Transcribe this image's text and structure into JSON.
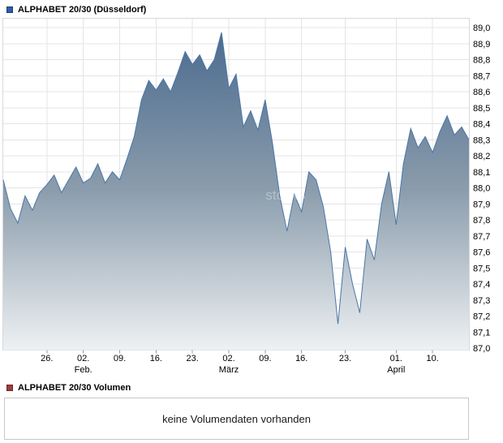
{
  "header": {
    "title": "ALPHABET 20/30 (Düsseldorf)",
    "legend_color": "#2d5da9"
  },
  "watermark": "stock3",
  "chart_data": {
    "type": "area",
    "title": "ALPHABET 20/30 (Düsseldorf)",
    "ylabel": "",
    "xlabel": "",
    "ylim": [
      87.0,
      89.0
    ],
    "y_tick_step": 0.1,
    "grid": true,
    "legend_position": "top-left",
    "line_color": "#4a76a6",
    "area_top_color": "#4a6a8e",
    "area_mid_color": "#8a9cac",
    "area_bottom_color": "#eef1f3",
    "grid_color": "#e4e4e4",
    "border_color": "#d8d8d8",
    "y_tick_labels": [
      "89,0",
      "88,9",
      "88,8",
      "88,7",
      "88,6",
      "88,5",
      "88,4",
      "88,3",
      "88,2",
      "88,1",
      "88,0",
      "87,9",
      "87,8",
      "87,7",
      "87,6",
      "87,5",
      "87,4",
      "87,3",
      "87,2",
      "87,1",
      "87,0"
    ],
    "values": [
      88.05,
      87.87,
      87.78,
      87.95,
      87.86,
      87.97,
      88.02,
      88.08,
      87.97,
      88.05,
      88.13,
      88.03,
      88.06,
      88.15,
      88.03,
      88.1,
      88.05,
      88.18,
      88.32,
      88.55,
      88.67,
      88.61,
      88.68,
      88.6,
      88.72,
      88.85,
      88.77,
      88.83,
      88.73,
      88.8,
      88.97,
      88.62,
      88.71,
      88.38,
      88.48,
      88.36,
      88.55,
      88.28,
      87.95,
      87.73,
      87.96,
      87.85,
      88.1,
      88.05,
      87.88,
      87.6,
      87.15,
      87.63,
      87.4,
      87.22,
      87.68,
      87.55,
      87.9,
      88.1,
      87.77,
      88.15,
      88.37,
      88.25,
      88.32,
      88.22,
      88.35,
      88.45,
      88.33,
      88.38,
      88.3
    ],
    "x_ticks": [
      {
        "index": 6,
        "label": "26.",
        "sub": ""
      },
      {
        "index": 11,
        "label": "02.",
        "sub": "Feb."
      },
      {
        "index": 16,
        "label": "09.",
        "sub": ""
      },
      {
        "index": 21,
        "label": "16.",
        "sub": ""
      },
      {
        "index": 26,
        "label": "23.",
        "sub": ""
      },
      {
        "index": 31,
        "label": "02.",
        "sub": "März"
      },
      {
        "index": 36,
        "label": "09.",
        "sub": ""
      },
      {
        "index": 41,
        "label": "16.",
        "sub": ""
      },
      {
        "index": 47,
        "label": "23.",
        "sub": ""
      },
      {
        "index": 54,
        "label": "01.",
        "sub": "April"
      },
      {
        "index": 59,
        "label": "10.",
        "sub": ""
      }
    ]
  },
  "volume": {
    "legend_label": "ALPHABET 20/30 Volumen",
    "legend_color": "#a23b3c",
    "message": "keine Volumendaten vorhanden"
  }
}
